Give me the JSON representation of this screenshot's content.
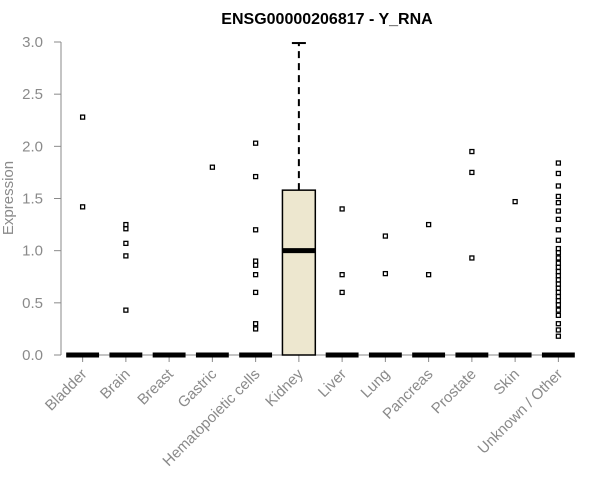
{
  "chart_data": {
    "type": "box",
    "title": "ENSG00000206817 - Y_RNA",
    "xlabel": "",
    "ylabel": "Expression",
    "ylim": [
      0,
      3.0
    ],
    "yticks": [
      "0.0",
      "0.5",
      "1.0",
      "1.5",
      "2.0",
      "2.5",
      "3.0"
    ],
    "grid": false,
    "colors": {
      "box_fill": "#ede7cf",
      "box_line": "#000000",
      "axis": "#8a8a8a"
    },
    "categories": [
      "Bladder",
      "Brain",
      "Breast",
      "Gastric",
      "Hematopoietic cells",
      "Kidney",
      "Liver",
      "Lung",
      "Pancreas",
      "Prostate",
      "Skin",
      "Unknown / Other"
    ],
    "boxes": [
      {
        "category": "Bladder",
        "q1": 0,
        "median": 0,
        "q3": 0,
        "whisker_low": 0,
        "whisker_high": 0,
        "outliers": [
          2.28,
          1.42
        ]
      },
      {
        "category": "Brain",
        "q1": 0,
        "median": 0,
        "q3": 0,
        "whisker_low": 0,
        "whisker_high": 0,
        "outliers": [
          1.25,
          1.21,
          1.07,
          0.95,
          0.43
        ]
      },
      {
        "category": "Breast",
        "q1": 0,
        "median": 0,
        "q3": 0,
        "whisker_low": 0,
        "whisker_high": 0,
        "outliers": []
      },
      {
        "category": "Gastric",
        "q1": 0,
        "median": 0,
        "q3": 0,
        "whisker_low": 0,
        "whisker_high": 0,
        "outliers": [
          1.8
        ]
      },
      {
        "category": "Hematopoietic cells",
        "q1": 0,
        "median": 0,
        "q3": 0,
        "whisker_low": 0,
        "whisker_high": 0,
        "outliers": [
          2.03,
          1.71,
          1.2,
          0.9,
          0.86,
          0.77,
          0.6,
          0.3,
          0.25
        ]
      },
      {
        "category": "Kidney",
        "q1": 0,
        "median": 1.0,
        "q3": 1.58,
        "whisker_low": 0,
        "whisker_high": 2.99,
        "outliers": []
      },
      {
        "category": "Liver",
        "q1": 0,
        "median": 0,
        "q3": 0,
        "whisker_low": 0,
        "whisker_high": 0,
        "outliers": [
          1.4,
          0.77,
          0.6
        ]
      },
      {
        "category": "Lung",
        "q1": 0,
        "median": 0,
        "q3": 0,
        "whisker_low": 0,
        "whisker_high": 0,
        "outliers": [
          1.14,
          0.78
        ]
      },
      {
        "category": "Pancreas",
        "q1": 0,
        "median": 0,
        "q3": 0,
        "whisker_low": 0,
        "whisker_high": 0,
        "outliers": [
          1.25,
          0.77
        ]
      },
      {
        "category": "Prostate",
        "q1": 0,
        "median": 0,
        "q3": 0,
        "whisker_low": 0,
        "whisker_high": 0,
        "outliers": [
          1.95,
          1.75,
          0.93
        ]
      },
      {
        "category": "Skin",
        "q1": 0,
        "median": 0,
        "q3": 0,
        "whisker_low": 0,
        "whisker_high": 0,
        "outliers": [
          1.47
        ]
      },
      {
        "category": "Unknown / Other",
        "q1": 0,
        "median": 0,
        "q3": 0,
        "whisker_low": 0,
        "whisker_high": 0,
        "outliers": [
          1.84,
          1.74,
          1.62,
          1.52,
          1.46,
          1.38,
          1.3,
          1.2,
          1.1,
          1.02,
          0.98,
          0.93,
          0.88,
          0.84,
          0.8,
          0.76,
          0.72,
          0.68,
          0.64,
          0.6,
          0.56,
          0.52,
          0.48,
          0.43,
          0.38,
          0.3,
          0.24,
          0.18
        ]
      }
    ]
  }
}
